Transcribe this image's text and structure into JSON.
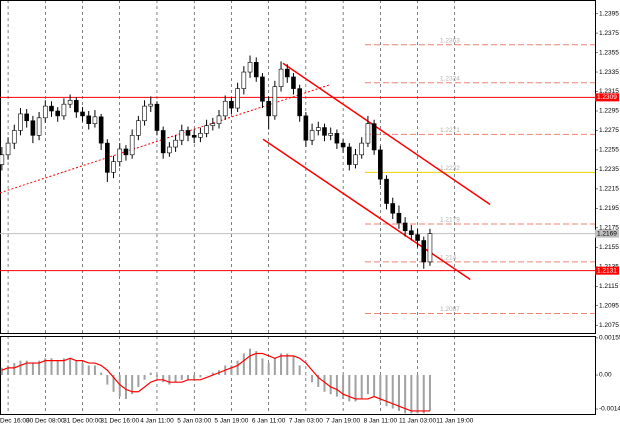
{
  "chart_data": {
    "type": "candlestick",
    "candles": [
      [
        1.224,
        1.2258,
        1.2234,
        1.225
      ],
      [
        1.225,
        1.2268,
        1.2245,
        1.2262
      ],
      [
        1.2262,
        1.2281,
        1.2256,
        1.2275
      ],
      [
        1.2275,
        1.2298,
        1.227,
        1.2292
      ],
      [
        1.2292,
        1.2297,
        1.2278,
        1.2285
      ],
      [
        1.2285,
        1.229,
        1.2262,
        1.227
      ],
      [
        1.227,
        1.2294,
        1.2265,
        1.2288
      ],
      [
        1.2288,
        1.2306,
        1.2283,
        1.23
      ],
      [
        1.23,
        1.2305,
        1.2289,
        1.2295
      ],
      [
        1.2295,
        1.2299,
        1.2284,
        1.229
      ],
      [
        1.229,
        1.2308,
        1.2286,
        1.2302
      ],
      [
        1.2302,
        1.2312,
        1.2298,
        1.2306
      ],
      [
        1.2306,
        1.2309,
        1.2288,
        1.2294
      ],
      [
        1.2294,
        1.2299,
        1.2284,
        1.229
      ],
      [
        1.229,
        1.2295,
        1.2276,
        1.2282
      ],
      [
        1.2282,
        1.2296,
        1.2278,
        1.2289
      ],
      [
        1.2289,
        1.2292,
        1.2255,
        1.2262
      ],
      [
        1.2262,
        1.2266,
        1.2222,
        1.2232
      ],
      [
        1.2232,
        1.2249,
        1.2226,
        1.2243
      ],
      [
        1.2243,
        1.2262,
        1.2238,
        1.2256
      ],
      [
        1.2256,
        1.226,
        1.2244,
        1.225
      ],
      [
        1.225,
        1.2276,
        1.2246,
        1.227
      ],
      [
        1.227,
        1.229,
        1.2265,
        1.2285
      ],
      [
        1.2285,
        1.2306,
        1.228,
        1.23
      ],
      [
        1.23,
        1.231,
        1.2294,
        1.2302
      ],
      [
        1.2302,
        1.2305,
        1.227,
        1.2275
      ],
      [
        1.2275,
        1.2279,
        1.2246,
        1.2252
      ],
      [
        1.2252,
        1.2263,
        1.2248,
        1.2258
      ],
      [
        1.2258,
        1.227,
        1.2253,
        1.2265
      ],
      [
        1.2265,
        1.2281,
        1.226,
        1.2275
      ],
      [
        1.2275,
        1.2279,
        1.2264,
        1.227
      ],
      [
        1.227,
        1.2276,
        1.2262,
        1.2268
      ],
      [
        1.2268,
        1.2278,
        1.2263,
        1.2272
      ],
      [
        1.2272,
        1.2286,
        1.2268,
        1.228
      ],
      [
        1.228,
        1.2288,
        1.2275,
        1.2282
      ],
      [
        1.2282,
        1.2296,
        1.2277,
        1.229
      ],
      [
        1.229,
        1.2311,
        1.2286,
        1.2305
      ],
      [
        1.2305,
        1.2309,
        1.2292,
        1.2298
      ],
      [
        1.2298,
        1.2324,
        1.2294,
        1.2318
      ],
      [
        1.2318,
        1.2341,
        1.2312,
        1.2335
      ],
      [
        1.2335,
        1.2352,
        1.2329,
        1.2345
      ],
      [
        1.2345,
        1.235,
        1.2325,
        1.233
      ],
      [
        1.233,
        1.2334,
        1.2298,
        1.2305
      ],
      [
        1.2305,
        1.231,
        1.2276,
        1.229
      ],
      [
        1.229,
        1.2326,
        1.2286,
        1.232
      ],
      [
        1.232,
        1.2346,
        1.2315,
        1.2338
      ],
      [
        1.2338,
        1.2343,
        1.2324,
        1.233
      ],
      [
        1.233,
        1.2334,
        1.2312,
        1.2318
      ],
      [
        1.2318,
        1.2322,
        1.2284,
        1.229
      ],
      [
        1.229,
        1.2294,
        1.2258,
        1.2265
      ],
      [
        1.2265,
        1.2282,
        1.226,
        1.2275
      ],
      [
        1.2275,
        1.2284,
        1.227,
        1.2278
      ],
      [
        1.2278,
        1.2282,
        1.2264,
        1.227
      ],
      [
        1.227,
        1.2278,
        1.2265,
        1.2272
      ],
      [
        1.2272,
        1.2276,
        1.2256,
        1.2262
      ],
      [
        1.2262,
        1.2266,
        1.2252,
        1.2258
      ],
      [
        1.2258,
        1.2262,
        1.2234,
        1.224
      ],
      [
        1.224,
        1.2256,
        1.2236,
        1.225
      ],
      [
        1.225,
        1.2268,
        1.2246,
        1.2262
      ],
      [
        1.2262,
        1.229,
        1.2258,
        1.2282
      ],
      [
        1.2282,
        1.2286,
        1.225,
        1.2255
      ],
      [
        1.2255,
        1.2259,
        1.2219,
        1.2225
      ],
      [
        1.2225,
        1.2229,
        1.2194,
        1.22
      ],
      [
        1.22,
        1.2206,
        1.2184,
        1.219
      ],
      [
        1.219,
        1.2198,
        1.2174,
        1.218
      ],
      [
        1.218,
        1.2186,
        1.2166,
        1.2172
      ],
      [
        1.2172,
        1.2178,
        1.2162,
        1.2168
      ],
      [
        1.2168,
        1.2174,
        1.2155,
        1.2162
      ],
      [
        1.2162,
        1.2166,
        1.2133,
        1.214
      ],
      [
        1.214,
        1.2174,
        1.2136,
        1.2169
      ]
    ],
    "xlim": [
      -0.3,
      95.6
    ],
    "xticks": [
      {
        "value": 1,
        "label": "Dec 16:00"
      },
      {
        "value": 7,
        "label": "30 Dec 08:00"
      },
      {
        "value": 13,
        "label": "31 Dec 00:00"
      },
      {
        "value": 19,
        "label": "31 Dec 16:00"
      },
      {
        "value": 25,
        "label": "4 Jan 11:00"
      },
      {
        "value": 31,
        "label": "5 Jan 03:00"
      },
      {
        "value": 37,
        "label": "5 Jan 19:00"
      },
      {
        "value": 43,
        "label": "6 Jan 11:00"
      },
      {
        "value": 49,
        "label": "7 Jan 03:00"
      },
      {
        "value": 55,
        "label": "7 Jan 19:00"
      },
      {
        "value": 61,
        "label": "8 Jan 11:00"
      },
      {
        "value": 67,
        "label": "11 Jan 03:00"
      },
      {
        "value": 73,
        "label": "11 Jan 19:00"
      }
    ],
    "ylim": [
      1.2067,
      1.2409
    ],
    "yticks": [
      1.2395,
      1.2375,
      1.2355,
      1.2335,
      1.2315,
      1.2295,
      1.2275,
      1.2255,
      1.2235,
      1.2215,
      1.2195,
      1.2175,
      1.2155,
      1.2135,
      1.2115,
      1.2095,
      1.2075
    ],
    "grid": true,
    "levels": [
      {
        "value": 1.2309,
        "color": "#ff0000"
      },
      {
        "value": 1.2131,
        "color": "#ff0000"
      }
    ],
    "current_price": 1.2169,
    "fib_levels": [
      {
        "value": 1.2363,
        "color": "#f08070",
        "style": "dashed"
      },
      {
        "value": 1.2324,
        "color": "#f08070",
        "style": "dashed"
      },
      {
        "value": 1.2271,
        "color": "#f08070",
        "style": "dashed"
      },
      {
        "value": 1.2232,
        "color": "#e8d000",
        "style": "solid"
      },
      {
        "value": 1.2179,
        "color": "#f08070",
        "style": "dashed"
      },
      {
        "value": 1.214,
        "color": "#f08070",
        "style": "dashed"
      },
      {
        "value": 1.2087,
        "color": "#f08070",
        "style": "dashed"
      }
    ],
    "trend_lines": [
      {
        "points": [
          [
            45.3,
            1.2344
          ],
          [
            78.7,
            1.2199
          ]
        ],
        "color": "#ff0000",
        "style": "solid"
      },
      {
        "points": [
          [
            42.1,
            1.2266
          ],
          [
            75.5,
            1.2122
          ]
        ],
        "color": "#ff0000",
        "style": "solid"
      },
      {
        "points": [
          [
            -0.3,
            1.2211
          ],
          [
            52.9,
            1.2322
          ]
        ],
        "color": "#ff0000",
        "style": "dotted"
      }
    ],
    "indicator": {
      "ylim": [
        -0.00167,
        0.00163
      ],
      "yticks": [
        0.00155,
        {
          "value": 0,
          "label": "0.00"
        },
        -0.00142
      ],
      "histogram": [
        0.0003,
        0.0004,
        0.0005,
        0.0006,
        0.0006,
        0.0005,
        0.0006,
        0.0007,
        0.0007,
        0.0006,
        0.0007,
        0.0007,
        0.0006,
        0.0005,
        0.0004,
        0.0004,
        0.0001,
        -0.0004,
        -0.0007,
        -0.0009,
        -0.001,
        -0.0008,
        -0.0005,
        -0.0002,
        0.0001,
        -0.0001,
        -0.0003,
        -0.0004,
        -0.0003,
        -0.0002,
        -0.0002,
        -0.0002,
        -0.0001,
        0.0,
        0.0001,
        0.0002,
        0.0004,
        0.0004,
        0.0006,
        0.0009,
        0.0011,
        0.001,
        0.0007,
        0.0005,
        0.0007,
        0.0009,
        0.0009,
        0.0008,
        0.0004,
        0.0,
        -0.0003,
        -0.0005,
        -0.0007,
        -0.0008,
        -0.0009,
        -0.001,
        -0.0011,
        -0.0011,
        -0.001,
        -0.0008,
        -0.0009,
        -0.0011,
        -0.0013,
        -0.0014,
        -0.0015,
        -0.0016,
        -0.0016,
        -0.0016,
        -0.0016,
        -0.0015
      ],
      "hist_color": "#a0a0a0",
      "signal": [
        0.0002,
        0.0003,
        0.0003,
        0.0004,
        0.0005,
        0.0005,
        0.0005,
        0.0006,
        0.0006,
        0.0006,
        0.0006,
        0.0007,
        0.0006,
        0.0006,
        0.0005,
        0.0005,
        0.0004,
        0.0002,
        -0.0001,
        -0.0004,
        -0.0006,
        -0.0007,
        -0.0007,
        -0.0005,
        -0.0003,
        -0.0002,
        -0.0002,
        -0.0003,
        -0.0003,
        -0.0003,
        -0.0002,
        -0.0002,
        -0.0002,
        -0.0001,
        0.0,
        0.0001,
        0.0002,
        0.0003,
        0.0004,
        0.0006,
        0.0008,
        0.0009,
        0.0009,
        0.0008,
        0.0007,
        0.0008,
        0.0008,
        0.0008,
        0.0007,
        0.0005,
        0.0002,
        -0.0001,
        -0.0003,
        -0.0005,
        -0.0006,
        -0.0008,
        -0.0009,
        -0.001,
        -0.001,
        -0.001,
        -0.0009,
        -0.001,
        -0.0011,
        -0.0012,
        -0.0013,
        -0.0014,
        -0.0015,
        -0.0015,
        -0.0015,
        -0.0015
      ],
      "signal_color": "#ff0000"
    }
  }
}
